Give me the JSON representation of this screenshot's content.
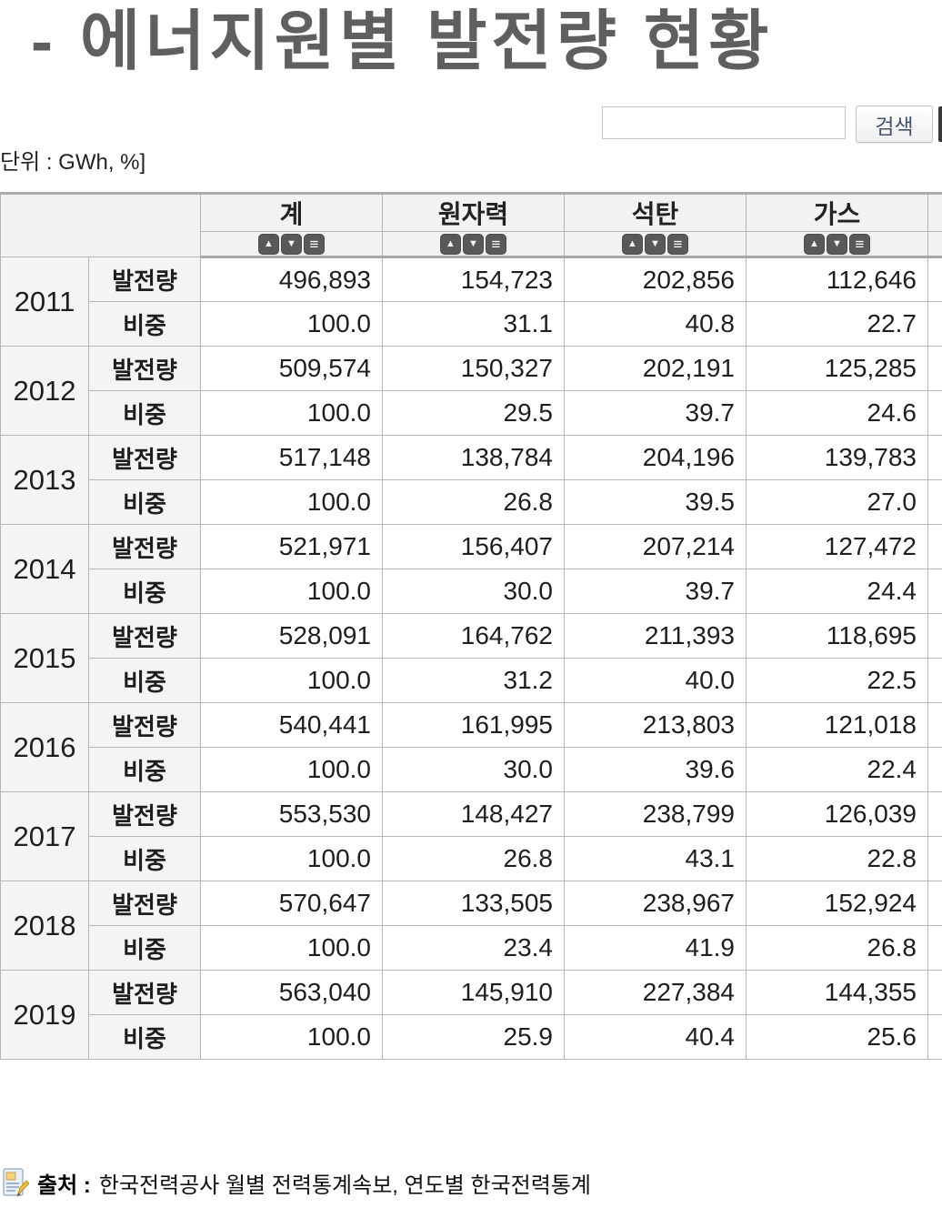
{
  "page": {
    "title": "- 에너지원별 발전량 현황",
    "unit_label": "단위 : GWh, %]"
  },
  "search": {
    "value": "",
    "button_label": "검색"
  },
  "table": {
    "columns": [
      "계",
      "원자력",
      "석탄",
      "가스"
    ],
    "sort_icons": [
      "sort-ascending-icon",
      "sort-descending-icon",
      "sort-menu-icon"
    ],
    "row_labels": {
      "generation": "발전량",
      "share": "비중"
    },
    "rows": [
      {
        "year": "2011",
        "generation": [
          "496,893",
          "154,723",
          "202,856",
          "112,646"
        ],
        "share": [
          "100.0",
          "31.1",
          "40.8",
          "22.7"
        ]
      },
      {
        "year": "2012",
        "generation": [
          "509,574",
          "150,327",
          "202,191",
          "125,285"
        ],
        "share": [
          "100.0",
          "29.5",
          "39.7",
          "24.6"
        ]
      },
      {
        "year": "2013",
        "generation": [
          "517,148",
          "138,784",
          "204,196",
          "139,783"
        ],
        "share": [
          "100.0",
          "26.8",
          "39.5",
          "27.0"
        ]
      },
      {
        "year": "2014",
        "generation": [
          "521,971",
          "156,407",
          "207,214",
          "127,472"
        ],
        "share": [
          "100.0",
          "30.0",
          "39.7",
          "24.4"
        ]
      },
      {
        "year": "2015",
        "generation": [
          "528,091",
          "164,762",
          "211,393",
          "118,695"
        ],
        "share": [
          "100.0",
          "31.2",
          "40.0",
          "22.5"
        ]
      },
      {
        "year": "2016",
        "generation": [
          "540,441",
          "161,995",
          "213,803",
          "121,018"
        ],
        "share": [
          "100.0",
          "30.0",
          "39.6",
          "22.4"
        ]
      },
      {
        "year": "2017",
        "generation": [
          "553,530",
          "148,427",
          "238,799",
          "126,039"
        ],
        "share": [
          "100.0",
          "26.8",
          "43.1",
          "22.8"
        ]
      },
      {
        "year": "2018",
        "generation": [
          "570,647",
          "133,505",
          "238,967",
          "152,924"
        ],
        "share": [
          "100.0",
          "23.4",
          "41.9",
          "26.8"
        ]
      },
      {
        "year": "2019",
        "generation": [
          "563,040",
          "145,910",
          "227,384",
          "144,355"
        ],
        "share": [
          "100.0",
          "25.9",
          "40.4",
          "25.6"
        ]
      }
    ]
  },
  "footer": {
    "source_label": "출처 :",
    "source_text": "한국전력공사 월별 전력통계속보, 연도별 한국전력통계"
  },
  "colors": {
    "title": "#5f5f5f",
    "sort_button": "#595959",
    "search_button_text": "#44546a",
    "header_background": "#f2f2f2",
    "row_header_background": "#f4f4f4",
    "table_border": "#b6b6b6"
  }
}
